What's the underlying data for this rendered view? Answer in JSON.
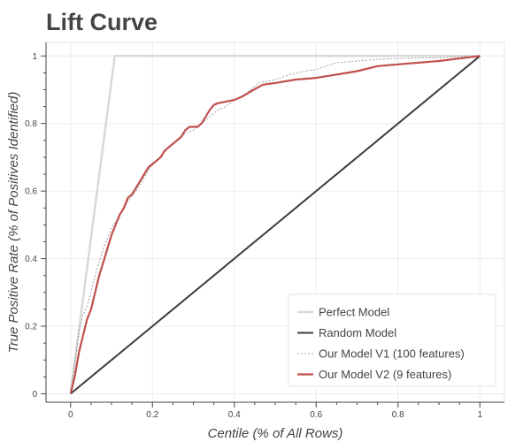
{
  "chart_data": {
    "type": "line",
    "title": "Lift Curve",
    "xlabel": "Centile (% of All Rows)",
    "ylabel": "True Positive Rate (% of Positives Identified)",
    "xlim": [
      -0.06,
      1.06
    ],
    "ylim": [
      -0.025,
      1.04
    ],
    "x_ticks": [
      0,
      0.2,
      0.4,
      0.6,
      0.8,
      1
    ],
    "x_tick_labels": [
      "0",
      "0.2",
      "0.4",
      "0.6",
      "0.8",
      "1"
    ],
    "y_ticks": [
      0,
      0.2,
      0.4,
      0.6,
      0.8,
      1
    ],
    "y_tick_labels": [
      "0",
      "0.2",
      "0.4",
      "0.6",
      "0.8",
      "1"
    ],
    "grid": true,
    "legend_position": "bottom-right",
    "series": [
      {
        "name": "Perfect Model",
        "color": "#d9d9d9",
        "style": "solid",
        "x": [
          0,
          0.108,
          1
        ],
        "y": [
          0,
          1,
          1
        ]
      },
      {
        "name": "Random Model",
        "color": "#3d3d3d",
        "style": "solid",
        "x": [
          0,
          1
        ],
        "y": [
          0,
          1
        ]
      },
      {
        "name": "Our Model V1 (100 features)",
        "color": "#8a8a8a",
        "style": "dashed",
        "x": [
          0,
          0.01,
          0.02,
          0.03,
          0.04,
          0.05,
          0.06,
          0.07,
          0.08,
          0.09,
          0.1,
          0.12,
          0.14,
          0.16,
          0.18,
          0.2,
          0.22,
          0.24,
          0.26,
          0.28,
          0.3,
          0.32,
          0.34,
          0.36,
          0.38,
          0.4,
          0.43,
          0.46,
          0.5,
          0.55,
          0.6,
          0.65,
          0.7,
          0.75,
          0.8,
          0.9,
          1
        ],
        "y": [
          0,
          0.09,
          0.18,
          0.23,
          0.26,
          0.3,
          0.35,
          0.39,
          0.43,
          0.46,
          0.49,
          0.53,
          0.57,
          0.6,
          0.64,
          0.68,
          0.7,
          0.73,
          0.75,
          0.77,
          0.78,
          0.8,
          0.82,
          0.84,
          0.85,
          0.87,
          0.89,
          0.92,
          0.93,
          0.95,
          0.96,
          0.98,
          0.985,
          0.99,
          0.992,
          0.995,
          1
        ]
      },
      {
        "name": "Our Model V2 (9 features)",
        "color": "#c0504d",
        "style": "solid",
        "x": [
          0,
          0.01,
          0.02,
          0.03,
          0.04,
          0.05,
          0.06,
          0.07,
          0.08,
          0.09,
          0.1,
          0.11,
          0.12,
          0.13,
          0.14,
          0.15,
          0.16,
          0.17,
          0.18,
          0.19,
          0.2,
          0.21,
          0.22,
          0.23,
          0.24,
          0.25,
          0.26,
          0.27,
          0.28,
          0.29,
          0.3,
          0.31,
          0.32,
          0.33,
          0.34,
          0.35,
          0.36,
          0.38,
          0.4,
          0.42,
          0.44,
          0.47,
          0.5,
          0.55,
          0.6,
          0.65,
          0.7,
          0.75,
          0.8,
          0.9,
          1
        ],
        "y": [
          0,
          0.05,
          0.12,
          0.17,
          0.22,
          0.25,
          0.3,
          0.35,
          0.39,
          0.43,
          0.47,
          0.5,
          0.53,
          0.55,
          0.58,
          0.59,
          0.61,
          0.63,
          0.65,
          0.67,
          0.68,
          0.69,
          0.7,
          0.72,
          0.73,
          0.74,
          0.75,
          0.76,
          0.78,
          0.79,
          0.79,
          0.79,
          0.8,
          0.82,
          0.84,
          0.855,
          0.86,
          0.865,
          0.87,
          0.88,
          0.895,
          0.915,
          0.92,
          0.93,
          0.935,
          0.945,
          0.955,
          0.97,
          0.975,
          0.985,
          1
        ]
      }
    ]
  }
}
